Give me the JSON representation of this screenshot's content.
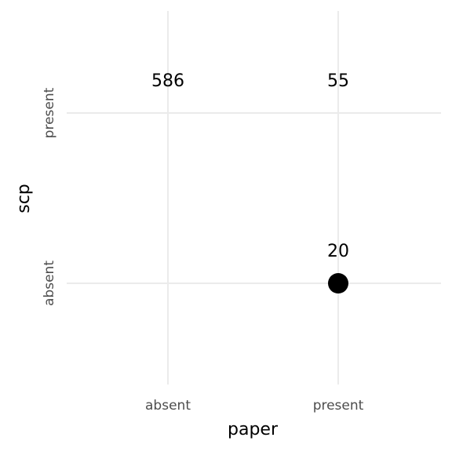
{
  "chart_data": {
    "type": "scatter",
    "title": "",
    "xlabel": "paper",
    "ylabel": "scp",
    "x_categories": [
      "absent",
      "present"
    ],
    "y_categories": [
      "absent",
      "present"
    ],
    "grid": true,
    "legend": "none",
    "point_color": "#000000",
    "cells": [
      {
        "x": "absent",
        "y": "present",
        "count": 586,
        "label": "586",
        "point": false
      },
      {
        "x": "present",
        "y": "present",
        "count": 55,
        "label": "55",
        "point": false
      },
      {
        "x": "present",
        "y": "absent",
        "count": 20,
        "label": "20",
        "point": true
      }
    ]
  }
}
